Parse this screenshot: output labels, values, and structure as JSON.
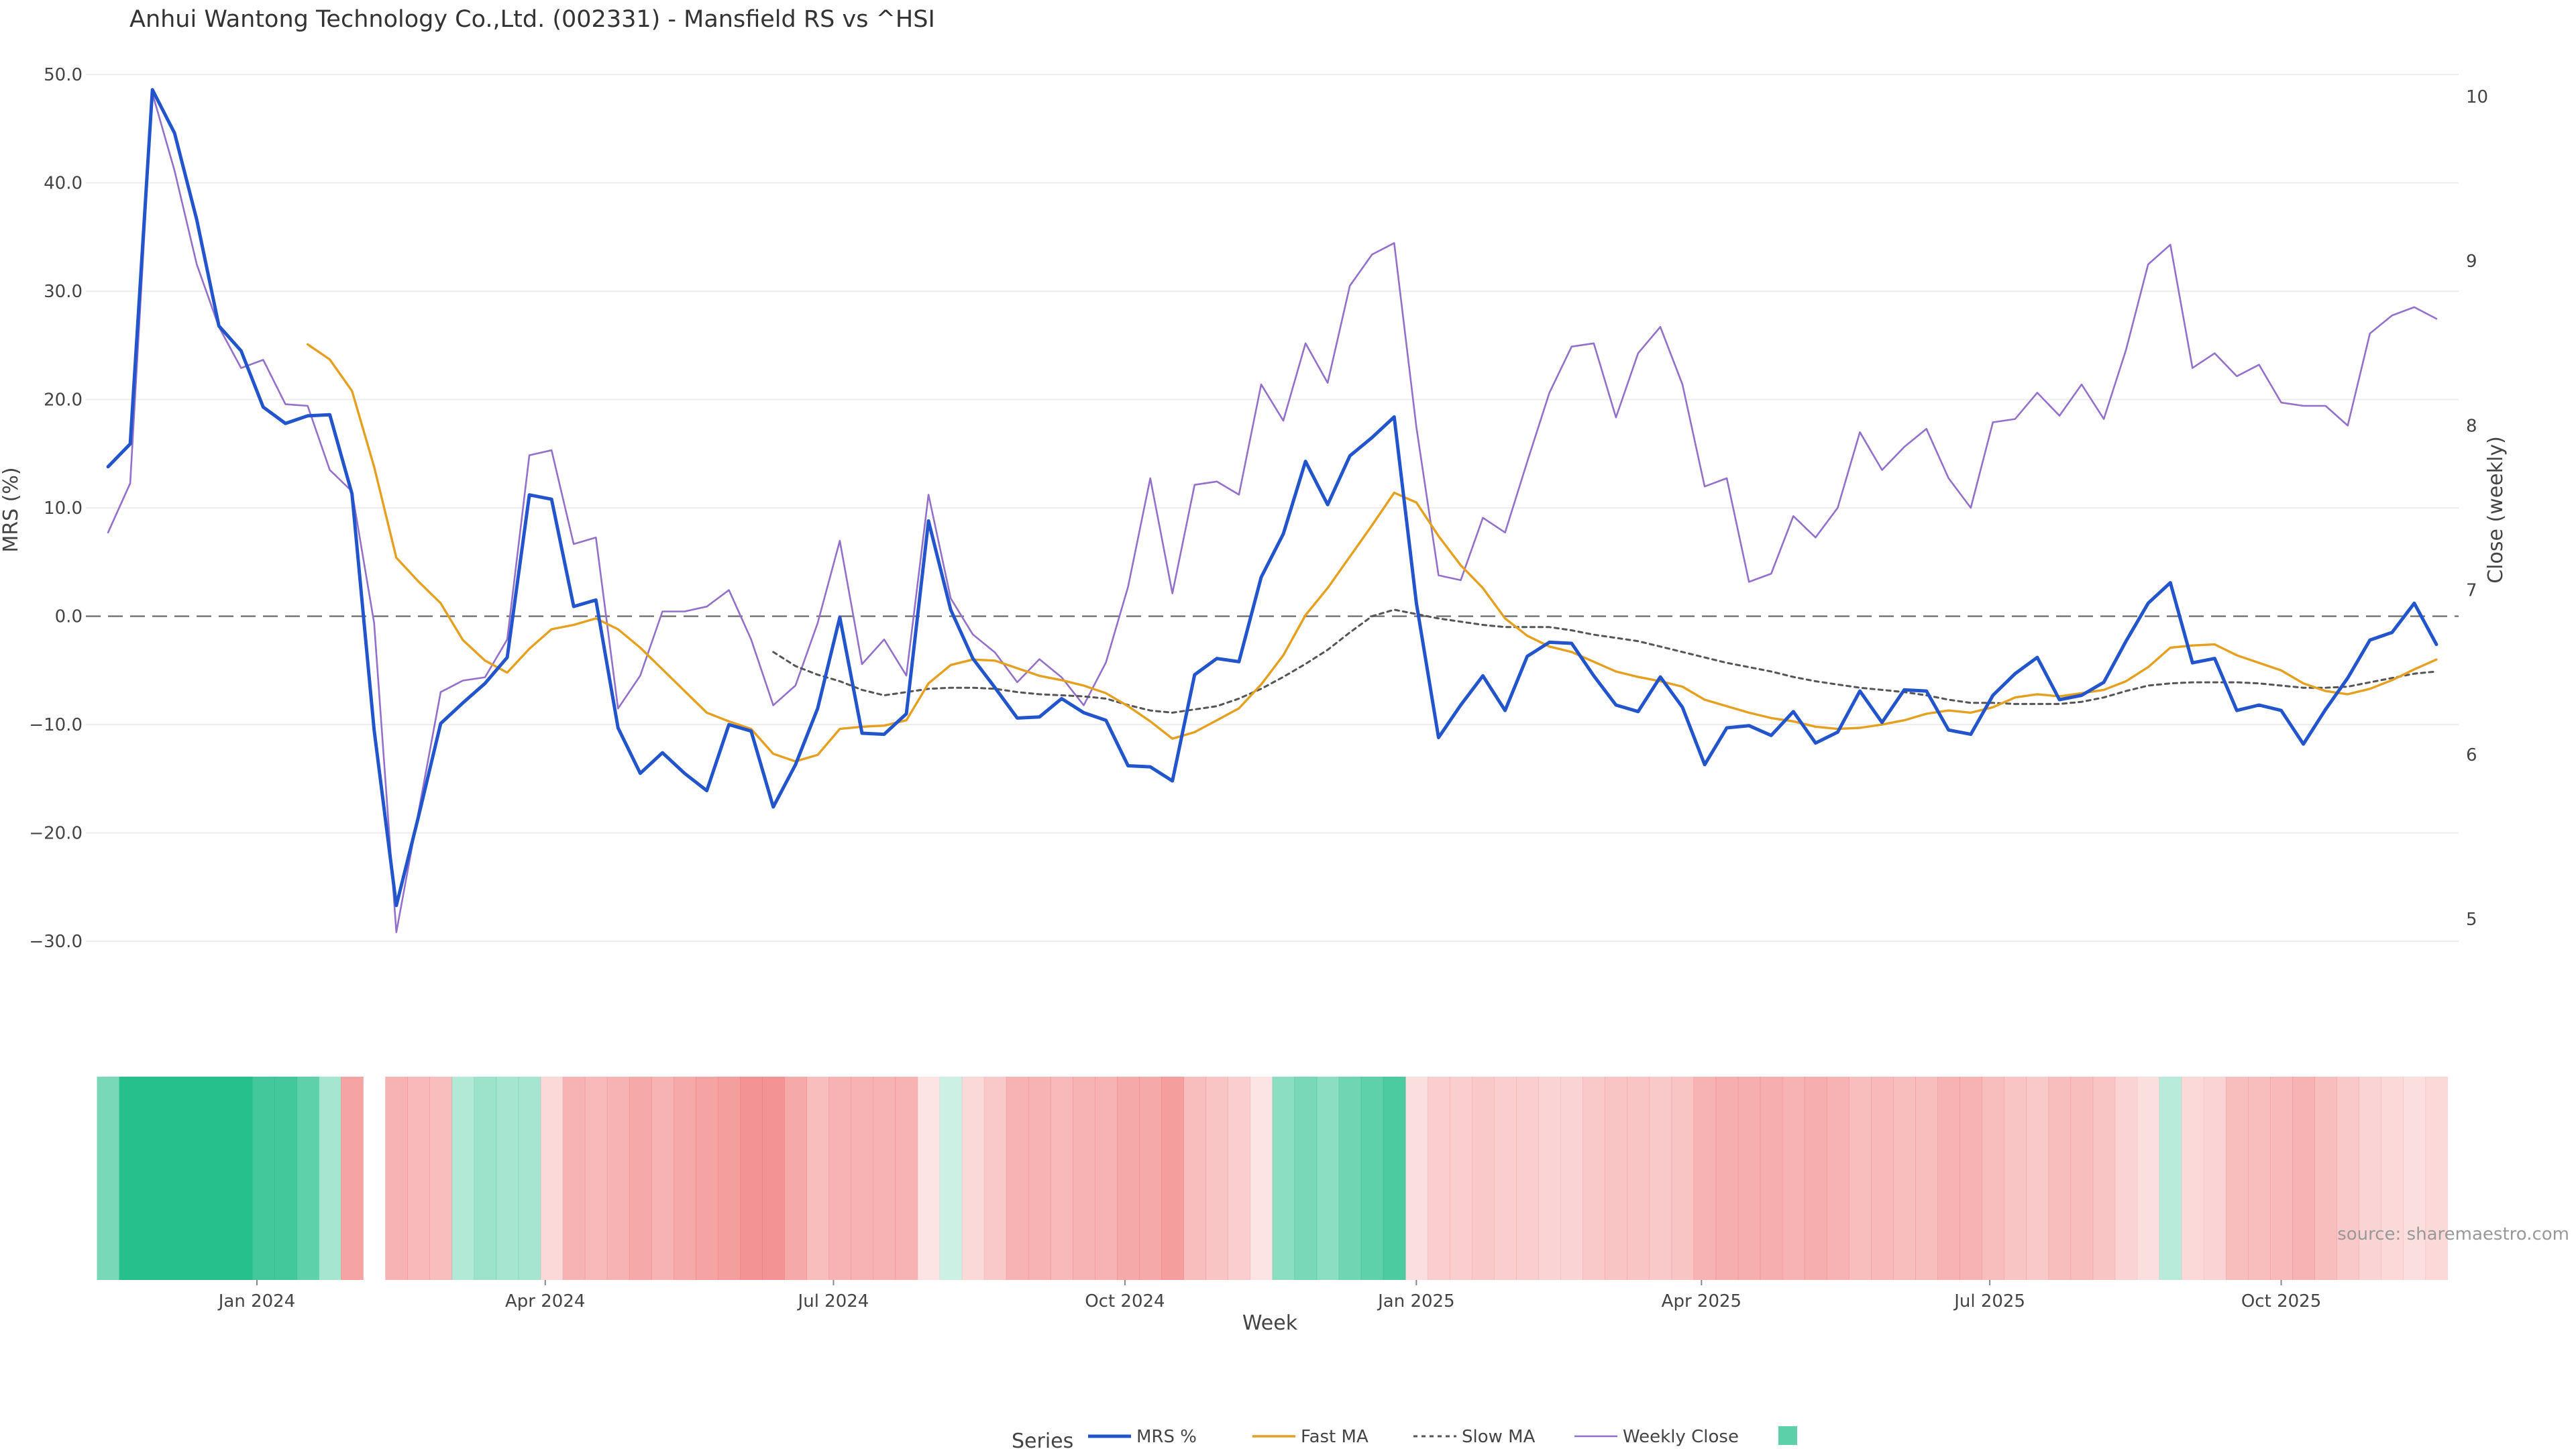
{
  "chart_data": {
    "type": "line",
    "title": "Anhui Wantong Technology Co.,Ltd. (002331) - Mansfield RS vs ^HSI",
    "xlabel": "Week",
    "ylabel": "MRS (%)",
    "y2label": "Close (weekly)",
    "source": "source: sharemaestro.com",
    "x_range": [
      "2023-11-08",
      "2025-11-26"
    ],
    "x_ticks": [
      {
        "date": "2024-01-01",
        "label": "Jan 2024"
      },
      {
        "date": "2024-04-01",
        "label": "Apr 2024"
      },
      {
        "date": "2024-07-01",
        "label": "Jul 2024"
      },
      {
        "date": "2024-10-01",
        "label": "Oct 2024"
      },
      {
        "date": "2025-01-01",
        "label": "Jan 2025"
      },
      {
        "date": "2025-04-01",
        "label": "Apr 2025"
      },
      {
        "date": "2025-07-01",
        "label": "Jul 2025"
      },
      {
        "date": "2025-10-01",
        "label": "Oct 2025"
      }
    ],
    "y_range": [
      -36,
      51
    ],
    "y_ticks": [
      {
        "value": 50,
        "label": "50.0"
      },
      {
        "value": 40,
        "label": "40.0"
      },
      {
        "value": 30,
        "label": "30.0"
      },
      {
        "value": 20,
        "label": "20.0"
      },
      {
        "value": 10,
        "label": "10.0"
      },
      {
        "value": 0,
        "label": "0.0"
      },
      {
        "value": -10,
        "label": "−10.0"
      },
      {
        "value": -20,
        "label": "−20.0"
      },
      {
        "value": -30,
        "label": "−30.0"
      }
    ],
    "y2_range": [
      4.47,
      10.2
    ],
    "y2_ticks": [
      {
        "value": 10,
        "label": "10"
      },
      {
        "value": 9,
        "label": "9"
      },
      {
        "value": 8,
        "label": "8"
      },
      {
        "value": 7,
        "label": "7"
      },
      {
        "value": 6,
        "label": "6"
      },
      {
        "value": 5,
        "label": "5"
      }
    ],
    "zero_line": 0,
    "grid": true,
    "legend": {
      "title": "Series",
      "position": "bottom-center"
    },
    "x": [
      "2023-11-15",
      "2023-11-22",
      "2023-11-29",
      "2023-12-06",
      "2023-12-13",
      "2023-12-20",
      "2023-12-27",
      "2024-01-03",
      "2024-01-10",
      "2024-01-17",
      "2024-01-24",
      "2024-01-31",
      "2024-02-07",
      "2024-02-14",
      "2024-02-21",
      "2024-02-28",
      "2024-03-06",
      "2024-03-13",
      "2024-03-20",
      "2024-03-27",
      "2024-04-03",
      "2024-04-10",
      "2024-04-17",
      "2024-04-24",
      "2024-05-01",
      "2024-05-08",
      "2024-05-15",
      "2024-05-22",
      "2024-05-29",
      "2024-06-05",
      "2024-06-12",
      "2024-06-19",
      "2024-06-26",
      "2024-07-03",
      "2024-07-10",
      "2024-07-17",
      "2024-07-24",
      "2024-07-31",
      "2024-08-07",
      "2024-08-14",
      "2024-08-21",
      "2024-08-28",
      "2024-09-04",
      "2024-09-11",
      "2024-09-18",
      "2024-09-25",
      "2024-10-02",
      "2024-10-09",
      "2024-10-16",
      "2024-10-23",
      "2024-10-30",
      "2024-11-06",
      "2024-11-13",
      "2024-11-20",
      "2024-11-27",
      "2024-12-04",
      "2024-12-11",
      "2024-12-18",
      "2024-12-25",
      "2025-01-01",
      "2025-01-08",
      "2025-01-15",
      "2025-01-22",
      "2025-01-29",
      "2025-02-05",
      "2025-02-12",
      "2025-02-19",
      "2025-02-26",
      "2025-03-05",
      "2025-03-12",
      "2025-03-19",
      "2025-03-26",
      "2025-04-02",
      "2025-04-09",
      "2025-04-16",
      "2025-04-23",
      "2025-04-30",
      "2025-05-07",
      "2025-05-14",
      "2025-05-21",
      "2025-05-28",
      "2025-06-04",
      "2025-06-11",
      "2025-06-18",
      "2025-06-25",
      "2025-07-02",
      "2025-07-09",
      "2025-07-16",
      "2025-07-23",
      "2025-07-30",
      "2025-08-06",
      "2025-08-13",
      "2025-08-20",
      "2025-08-27",
      "2025-09-03",
      "2025-09-10",
      "2025-09-17",
      "2025-09-24",
      "2025-10-01",
      "2025-10-08",
      "2025-10-15",
      "2025-10-22",
      "2025-10-29",
      "2025-11-05",
      "2025-11-12",
      "2025-11-19"
    ],
    "series": [
      {
        "name": "MRS %",
        "color": "#2255cc",
        "axis": "left",
        "style": "solid",
        "values": [
          13.8,
          15.9,
          48.6,
          44.6,
          36.6,
          26.8,
          24.5,
          19.3,
          17.8,
          18.5,
          18.6,
          11.3,
          -10.5,
          -26.7,
          -18.5,
          -9.9,
          -8.0,
          -6.2,
          -3.8,
          11.2,
          10.8,
          0.9,
          1.5,
          -10.3,
          -14.5,
          -12.6,
          -14.5,
          -16.1,
          -10.0,
          -10.6,
          -17.6,
          -13.7,
          -8.5,
          -0.1,
          -10.8,
          -10.9,
          -9.0,
          8.8,
          0.6,
          -3.9,
          -6.6,
          -9.4,
          -9.3,
          -7.6,
          -8.9,
          -9.6,
          -13.8,
          -13.9,
          -15.2,
          -5.4,
          -3.9,
          -4.2,
          3.6,
          7.6,
          14.3,
          10.3,
          14.8,
          16.5,
          18.4,
          1.2,
          -11.2,
          -8.2,
          -5.5,
          -8.7,
          -3.7,
          -2.4,
          -2.5,
          -5.5,
          -8.2,
          -8.8,
          -5.6,
          -8.4,
          -13.7,
          -10.3,
          -10.1,
          -11.0,
          -8.8,
          -11.7,
          -10.7,
          -6.9,
          -9.8,
          -6.8,
          -6.9,
          -10.5,
          -10.9,
          -7.3,
          -5.3,
          -3.8,
          -7.7,
          -7.3,
          -6.1,
          -2.3,
          1.2,
          3.1,
          -4.3,
          -3.9,
          -8.7,
          -8.2,
          -8.7,
          -11.8,
          -8.6,
          -5.7,
          -2.2,
          -1.5,
          1.2,
          -2.6
        ]
      },
      {
        "name": "Fast MA",
        "color": "#e6a020",
        "axis": "left",
        "style": "solid",
        "values": [
          null,
          null,
          null,
          null,
          null,
          null,
          null,
          null,
          null,
          25.1,
          23.7,
          20.8,
          13.8,
          5.4,
          3.2,
          1.2,
          -2.2,
          -4.1,
          -5.2,
          -3.0,
          -1.2,
          -0.8,
          -0.2,
          -1.2,
          -2.9,
          -4.9,
          -6.9,
          -8.9,
          -9.7,
          -10.4,
          -12.7,
          -13.4,
          -12.8,
          -10.4,
          -10.2,
          -10.1,
          -9.6,
          -6.2,
          -4.5,
          -4.0,
          -4.1,
          -4.8,
          -5.5,
          -5.9,
          -6.4,
          -7.1,
          -8.3,
          -9.7,
          -11.3,
          -10.7,
          -9.6,
          -8.5,
          -6.3,
          -3.6,
          0.1,
          2.6,
          5.5,
          8.4,
          11.4,
          10.5,
          7.4,
          4.7,
          2.6,
          -0.2,
          -1.8,
          -2.8,
          -3.3,
          -4.2,
          -5.1,
          -5.6,
          -6.0,
          -6.5,
          -7.7,
          -8.3,
          -8.9,
          -9.4,
          -9.7,
          -10.2,
          -10.4,
          -10.3,
          -10.0,
          -9.6,
          -9.0,
          -8.7,
          -8.9,
          -8.4,
          -7.5,
          -7.2,
          -7.4,
          -7.1,
          -6.8,
          -6.0,
          -4.7,
          -2.9,
          -2.7,
          -2.6,
          -3.6,
          -4.3,
          -5.0,
          -6.2,
          -6.9,
          -7.2,
          -6.7,
          -5.9,
          -4.9,
          -4.0
        ]
      },
      {
        "name": "Slow MA",
        "color": "#555555",
        "axis": "left",
        "style": "dotted",
        "values": [
          null,
          null,
          null,
          null,
          null,
          null,
          null,
          null,
          null,
          null,
          null,
          null,
          null,
          null,
          null,
          null,
          null,
          null,
          null,
          null,
          null,
          null,
          null,
          null,
          null,
          null,
          null,
          null,
          null,
          null,
          -3.3,
          -4.6,
          -5.4,
          -6.0,
          -6.8,
          -7.3,
          -7.0,
          -6.7,
          -6.6,
          -6.6,
          -6.7,
          -7.0,
          -7.2,
          -7.3,
          -7.4,
          -7.6,
          -8.2,
          -8.7,
          -8.9,
          -8.6,
          -8.3,
          -7.6,
          -6.7,
          -5.6,
          -4.4,
          -3.1,
          -1.5,
          0.0,
          0.6,
          0.2,
          -0.2,
          -0.5,
          -0.8,
          -1.0,
          -1.0,
          -1.0,
          -1.3,
          -1.7,
          -2.0,
          -2.3,
          -2.8,
          -3.3,
          -3.8,
          -4.3,
          -4.7,
          -5.1,
          -5.6,
          -6.0,
          -6.3,
          -6.6,
          -6.8,
          -7.0,
          -7.3,
          -7.7,
          -8.0,
          -8.0,
          -8.1,
          -8.1,
          -8.1,
          -7.9,
          -7.5,
          -6.9,
          -6.4,
          -6.2,
          -6.1,
          -6.1,
          -6.1,
          -6.2,
          -6.4,
          -6.6,
          -6.6,
          -6.5,
          -6.1,
          -5.7,
          -5.3,
          -5.1
        ]
      },
      {
        "name": "Weekly Close",
        "color": "#9370cc",
        "axis": "right",
        "style": "solid",
        "values": [
          7.35,
          7.65,
          10.02,
          9.55,
          8.98,
          8.6,
          8.35,
          8.4,
          8.13,
          8.12,
          7.73,
          7.6,
          6.8,
          4.92,
          5.65,
          6.38,
          6.45,
          6.47,
          6.7,
          7.82,
          7.85,
          7.28,
          7.32,
          6.28,
          6.48,
          6.87,
          6.87,
          6.9,
          7.0,
          6.7,
          6.3,
          6.42,
          6.8,
          7.3,
          6.55,
          6.7,
          6.48,
          7.58,
          6.95,
          6.73,
          6.62,
          6.44,
          6.58,
          6.47,
          6.3,
          6.56,
          7.02,
          7.68,
          6.98,
          7.64,
          7.66,
          7.58,
          8.25,
          8.03,
          8.5,
          8.26,
          8.85,
          9.04,
          9.11,
          7.99,
          7.09,
          7.06,
          7.44,
          7.35,
          7.78,
          8.2,
          8.48,
          8.5,
          8.05,
          8.44,
          8.6,
          8.25,
          7.63,
          7.68,
          7.05,
          7.1,
          7.45,
          7.32,
          7.5,
          7.96,
          7.73,
          7.87,
          7.98,
          7.68,
          7.5,
          8.02,
          8.04,
          8.2,
          8.06,
          8.25,
          8.04,
          8.46,
          8.98,
          9.1,
          8.35,
          8.44,
          8.3,
          8.37,
          8.14,
          8.12,
          8.12,
          8.0,
          8.56,
          8.67,
          8.72,
          8.65
        ]
      }
    ],
    "heatmap": {
      "description_colors": {
        "positive": "#26c08c",
        "negative": "#f07878"
      },
      "gaps": [
        "2024-02-14"
      ],
      "values": [
        0.55,
        1,
        1,
        1,
        1,
        1,
        1,
        0.85,
        0.85,
        0.7,
        0.3,
        -0.7,
        null,
        -0.55,
        -0.5,
        -0.45,
        0.25,
        0.35,
        0.3,
        0.3,
        -0.2,
        -0.55,
        -0.5,
        -0.55,
        -0.65,
        -0.55,
        -0.65,
        -0.7,
        -0.75,
        -0.85,
        -0.85,
        -0.65,
        -0.45,
        -0.55,
        -0.55,
        -0.55,
        -0.55,
        -0.1,
        0.1,
        -0.2,
        -0.35,
        -0.55,
        -0.55,
        -0.5,
        -0.55,
        -0.55,
        -0.65,
        -0.65,
        -0.75,
        -0.45,
        -0.4,
        -0.3,
        -0.1,
        0.45,
        0.55,
        0.45,
        0.6,
        0.7,
        0.8,
        -0.15,
        -0.3,
        -0.3,
        -0.35,
        -0.3,
        -0.3,
        -0.25,
        -0.25,
        -0.35,
        -0.4,
        -0.4,
        -0.35,
        -0.4,
        -0.55,
        -0.6,
        -0.6,
        -0.6,
        -0.55,
        -0.6,
        -0.55,
        -0.45,
        -0.5,
        -0.45,
        -0.45,
        -0.55,
        -0.55,
        -0.45,
        -0.4,
        -0.35,
        -0.45,
        -0.45,
        -0.4,
        -0.25,
        -0.15,
        0.2,
        -0.2,
        -0.25,
        -0.45,
        -0.45,
        -0.5,
        -0.55,
        -0.45,
        -0.35,
        -0.25,
        -0.2,
        -0.15,
        -0.2
      ]
    }
  }
}
